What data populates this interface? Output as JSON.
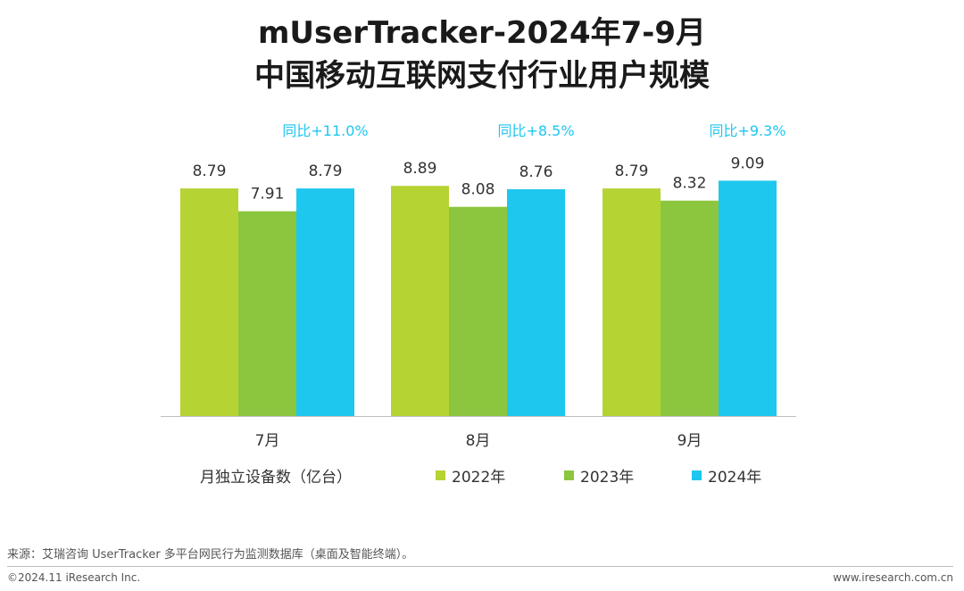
{
  "title_line1": "mUserTracker-2024年7-9月",
  "title_line2": "中国移动互联网支付行业用户规模",
  "chart_data": {
    "type": "bar",
    "categories": [
      "7月",
      "8月",
      "9月"
    ],
    "series": [
      {
        "name": "2022年",
        "values": [
          8.79,
          8.89,
          8.79
        ],
        "color": "#b5d333"
      },
      {
        "name": "2023年",
        "values": [
          7.91,
          8.08,
          8.32
        ],
        "color": "#8cc63f"
      },
      {
        "name": "2024年",
        "values": [
          8.79,
          8.76,
          9.09
        ],
        "color": "#1ec7ee"
      }
    ],
    "annotations": [
      "同比+11.0%",
      "同比+8.5%",
      "同比+9.3%"
    ],
    "annotation_color": "#1ec7ee",
    "ylabel": "月独立设备数（亿台）",
    "ylim": [
      0,
      10
    ],
    "grid": false,
    "legend_position": "bottom"
  },
  "footnote": "来源：艾瑞咨询 UserTracker 多平台网民行为监测数据库（桌面及智能终端）。",
  "copyright": "©2024.11 iResearch Inc.",
  "website": "www.iresearch.com.cn"
}
